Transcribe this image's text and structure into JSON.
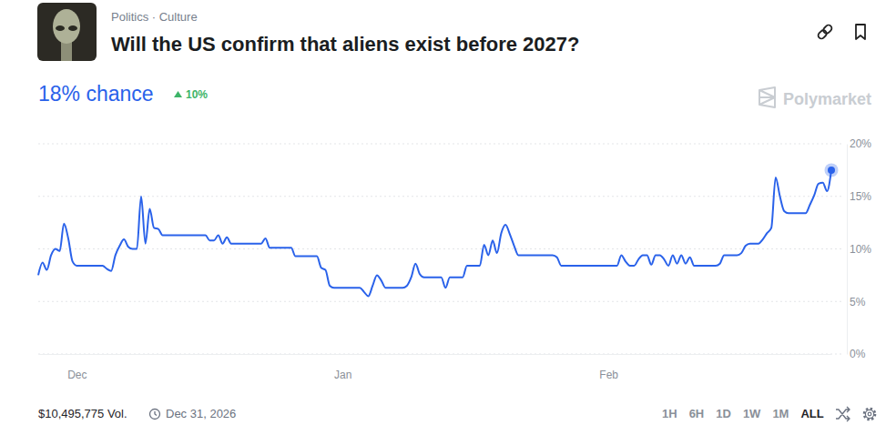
{
  "page": {
    "tags": "Politics · Culture",
    "headline": "18% chance",
    "change": "10%",
    "brand": "Polymarket",
    "volume": "$10,495,775 Vol.",
    "end_date": "Dec 31, 2026",
    "ranges": [
      "1H",
      "6H",
      "1D",
      "1W",
      "1M",
      "ALL"
    ],
    "active_range": "ALL"
  },
  "chart_data": {
    "type": "line",
    "title": "Will the US confirm that aliens exist before 2027?",
    "color": "#2a62ea",
    "grid": true,
    "ylim": [
      0,
      20
    ],
    "yticks": [
      {
        "value": 0,
        "label": "0%"
      },
      {
        "value": 5,
        "label": "5%"
      },
      {
        "value": 10,
        "label": "10%"
      },
      {
        "value": 15,
        "label": "15%"
      },
      {
        "value": 20,
        "label": "20%"
      }
    ],
    "categories": [
      null,
      null,
      null,
      null,
      null,
      null,
      null,
      null,
      null,
      "Dec",
      null,
      null,
      null,
      null,
      null,
      null,
      null,
      null,
      null,
      null,
      null,
      null,
      null,
      null,
      null,
      null,
      null,
      null,
      null,
      null,
      null,
      null,
      null,
      null,
      null,
      null,
      null,
      null,
      null,
      null,
      null,
      null,
      null,
      null,
      null,
      null,
      null,
      null,
      null,
      null,
      null,
      null,
      null,
      null,
      null,
      null,
      null,
      null,
      null,
      null,
      null,
      null,
      null,
      null,
      null,
      null,
      null,
      null,
      null,
      null,
      null,
      "Jan",
      null,
      null,
      null,
      null,
      null,
      null,
      null,
      null,
      null,
      null,
      null,
      null,
      null,
      null,
      null,
      null,
      null,
      null,
      null,
      null,
      null,
      null,
      null,
      null,
      null,
      null,
      null,
      null,
      null,
      null,
      null,
      null,
      null,
      null,
      null,
      null,
      null,
      null,
      null,
      null,
      null,
      null,
      null,
      null,
      null,
      null,
      null,
      null,
      null,
      null,
      null,
      null,
      null,
      null,
      null,
      null,
      null,
      null,
      null,
      null,
      null,
      "Feb",
      null,
      null,
      null,
      null,
      null,
      null,
      null,
      null,
      null,
      null,
      null,
      null,
      null,
      null,
      null,
      null,
      null,
      null,
      null,
      null,
      null,
      null,
      null,
      null,
      null,
      null,
      null,
      null,
      null,
      null,
      null,
      null,
      null,
      null,
      null,
      null,
      null,
      null,
      null,
      null,
      null,
      null,
      null,
      null,
      null,
      null,
      null,
      null,
      null,
      null,
      null,
      null
    ],
    "values": [
      7.5,
      8.7,
      8.0,
      9.4,
      10.0,
      9.8,
      12.4,
      11.0,
      8.8,
      8.4,
      8.4,
      8.4,
      8.4,
      8.4,
      8.4,
      8.4,
      8.1,
      7.9,
      9.4,
      10.3,
      10.9,
      10.2,
      10.0,
      10.0,
      15.0,
      10.5,
      13.8,
      12.0,
      11.9,
      11.3,
      11.3,
      11.3,
      11.3,
      11.3,
      11.3,
      11.3,
      11.3,
      11.3,
      11.3,
      11.3,
      10.8,
      10.8,
      11.3,
      10.5,
      11.1,
      10.5,
      10.5,
      10.5,
      10.5,
      10.5,
      10.5,
      10.5,
      10.5,
      11.0,
      10.1,
      10.1,
      10.1,
      10.1,
      10.1,
      10.1,
      9.3,
      9.3,
      9.3,
      9.3,
      9.3,
      9.3,
      8.2,
      8.0,
      6.5,
      6.3,
      6.3,
      6.3,
      6.3,
      6.3,
      6.3,
      6.3,
      5.9,
      5.5,
      6.5,
      7.5,
      7.0,
      6.3,
      6.3,
      6.3,
      6.3,
      6.3,
      6.5,
      7.3,
      8.6,
      7.6,
      7.3,
      7.3,
      7.3,
      7.3,
      7.3,
      6.3,
      7.3,
      7.3,
      7.3,
      7.3,
      8.4,
      8.4,
      8.4,
      8.4,
      10.4,
      9.4,
      10.8,
      9.6,
      11.5,
      12.3,
      11.4,
      10.3,
      9.4,
      9.4,
      9.4,
      9.4,
      9.4,
      9.4,
      9.4,
      9.4,
      9.4,
      9.2,
      8.4,
      8.4,
      8.4,
      8.4,
      8.4,
      8.4,
      8.4,
      8.4,
      8.4,
      8.4,
      8.4,
      8.4,
      8.4,
      8.4,
      9.4,
      8.8,
      8.4,
      8.4,
      9.0,
      9.4,
      9.4,
      8.5,
      9.4,
      9.4,
      9.0,
      8.4,
      9.4,
      8.6,
      9.4,
      8.6,
      9.2,
      8.4,
      8.4,
      8.4,
      8.4,
      8.4,
      8.4,
      8.6,
      9.4,
      9.4,
      9.4,
      9.4,
      9.6,
      10.3,
      10.5,
      10.5,
      10.5,
      10.9,
      11.5,
      12.0,
      16.8,
      15.0,
      13.6,
      13.4,
      13.4,
      13.4,
      13.4,
      13.4,
      14.2,
      15.1,
      16.2,
      16.3,
      15.5,
      17.5
    ]
  }
}
